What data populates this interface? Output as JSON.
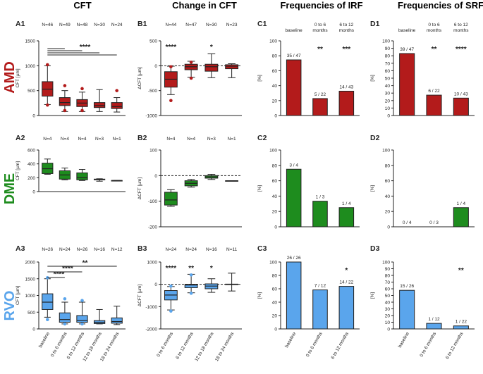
{
  "column_titles": [
    "CFT",
    "Change in CFT",
    "Frequencies of IRF",
    "Frequencies of SRF"
  ],
  "row_labels": [
    {
      "text": "AMD",
      "color": "#b31b1b"
    },
    {
      "text": "DME",
      "color": "#1e8c1e"
    },
    {
      "text": "RVO",
      "color": "#5aa5ec"
    }
  ],
  "colors": {
    "AMD": "#b31b1b",
    "DME": "#1e8c1e",
    "RVO": "#5aa5ec",
    "axis": "#222222"
  },
  "x_tick_labels": {
    "cft": [
      "baseline",
      "0 to 6 months",
      "6 to 12 months",
      "12 to 18 months",
      "18 to 24 months"
    ],
    "change": [
      "0 to 6 months",
      "6 to 12 months",
      "12 to 18 months",
      "18 to 24 months"
    ],
    "freq": [
      "baseline",
      "0 to 6 months",
      "6 to 12 months"
    ]
  },
  "chart_data": [
    {
      "id": "A1",
      "type": "box",
      "title": "A1",
      "ylabel": "CFT [µm]",
      "ylim": [
        0,
        1500
      ],
      "yticks": [
        0,
        500,
        1000,
        1500
      ],
      "color": "#b31b1b",
      "categories": [
        "baseline",
        "0 to 6 months",
        "6 to 12 months",
        "12 to 18 months",
        "18 to 24 months"
      ],
      "n_labels": [
        "N=46",
        "N=49",
        "N=48",
        "N=30",
        "N=24"
      ],
      "boxes": [
        {
          "min": 220,
          "q1": 390,
          "median": 530,
          "q3": 680,
          "max": 1000,
          "outliers": [
            1020,
            210
          ]
        },
        {
          "min": 80,
          "q1": 200,
          "median": 260,
          "q3": 360,
          "max": 500,
          "outliers": [
            600,
            100
          ]
        },
        {
          "min": 80,
          "q1": 180,
          "median": 250,
          "q3": 320,
          "max": 470,
          "outliers": [
            540,
            100
          ]
        },
        {
          "min": 80,
          "q1": 160,
          "median": 200,
          "q3": 260,
          "max": 520,
          "outliers": []
        },
        {
          "min": 70,
          "q1": 140,
          "median": 180,
          "q3": 260,
          "max": 360,
          "outliers": [
            500
          ]
        }
      ],
      "significance": {
        "text": "****",
        "comparisons": [
          [
            0,
            1
          ],
          [
            0,
            2
          ],
          [
            0,
            3
          ],
          [
            0,
            4
          ]
        ]
      }
    },
    {
      "id": "B1",
      "type": "box",
      "title": "B1",
      "ylabel": "ΔCFT [µm]",
      "ylim": [
        -1000,
        500
      ],
      "yticks": [
        -1000,
        -500,
        0,
        500
      ],
      "dashed_zero": true,
      "color": "#b31b1b",
      "categories": [
        "0 to 6 months",
        "6 to 12 months",
        "12 to 18 months",
        "18 to 24 months"
      ],
      "n_labels": [
        "N=44",
        "N=47",
        "N=30",
        "N=23"
      ],
      "boxes": [
        {
          "min": -580,
          "q1": -430,
          "median": -270,
          "q3": -120,
          "max": -10,
          "outliers": [
            -700,
            -20
          ]
        },
        {
          "min": -230,
          "q1": -80,
          "median": -20,
          "q3": 30,
          "max": 90,
          "outliers": [
            -250,
            70
          ]
        },
        {
          "min": -240,
          "q1": -110,
          "median": -20,
          "q3": 30,
          "max": 240,
          "outliers": []
        },
        {
          "min": -240,
          "q1": -60,
          "median": -10,
          "q3": 20,
          "max": 40,
          "outliers": []
        }
      ],
      "stars": [
        {
          "index": 0,
          "text": "****"
        },
        {
          "index": 2,
          "text": "*"
        }
      ]
    },
    {
      "id": "C1",
      "type": "bar",
      "title": "C1",
      "ylabel": "[%]",
      "ylim": [
        0,
        100
      ],
      "yticks": [
        0,
        20,
        40,
        60,
        80,
        100
      ],
      "color": "#b31b1b",
      "categories": [
        "baseline",
        "0 to 6 months",
        "6 to 12 months"
      ],
      "values": [
        74.5,
        22.7,
        32.6
      ],
      "labels": [
        "35 / 47",
        "5 / 22",
        "14 / 43"
      ],
      "stars": [
        {
          "index": 1,
          "text": "**"
        },
        {
          "index": 2,
          "text": "***"
        }
      ]
    },
    {
      "id": "D1",
      "type": "bar",
      "title": "D1",
      "ylabel": "[%]",
      "ylim": [
        0,
        100
      ],
      "yticks": [
        0,
        10,
        20,
        30,
        40,
        50,
        60,
        70,
        80,
        90,
        100
      ],
      "color": "#b31b1b",
      "categories": [
        "baseline",
        "0 to 6 months",
        "6 to 12 months"
      ],
      "values": [
        83.0,
        27.3,
        23.3
      ],
      "labels": [
        "39 / 47",
        "6 / 22",
        "10 / 43"
      ],
      "stars": [
        {
          "index": 1,
          "text": "**"
        },
        {
          "index": 2,
          "text": "****"
        }
      ]
    },
    {
      "id": "A2",
      "type": "box",
      "title": "A2",
      "ylabel": "CFT [µm]",
      "ylim": [
        0,
        600
      ],
      "yticks": [
        0,
        200,
        400,
        600
      ],
      "color": "#1e8c1e",
      "categories": [
        "baseline",
        "0 to 6 months",
        "6 to 12 months",
        "12 to 18 months",
        "18 to 24 months"
      ],
      "n_labels": [
        "N=4",
        "N=4",
        "N=4",
        "N=3",
        "N=1"
      ],
      "boxes": [
        {
          "min": 250,
          "q1": 260,
          "median": 330,
          "q3": 410,
          "max": 470,
          "outliers": []
        },
        {
          "min": 170,
          "q1": 180,
          "median": 240,
          "q3": 300,
          "max": 340,
          "outliers": []
        },
        {
          "min": 160,
          "q1": 170,
          "median": 200,
          "q3": 270,
          "max": 320,
          "outliers": []
        },
        {
          "min": 150,
          "q1": 170,
          "median": 175,
          "q3": 180,
          "max": 185,
          "outliers": []
        },
        {
          "min": 160,
          "q1": 160,
          "median": 160,
          "q3": 160,
          "max": 160,
          "outliers": []
        }
      ]
    },
    {
      "id": "B2",
      "type": "box",
      "title": "B2",
      "ylabel": "ΔCFT [µm]",
      "ylim": [
        -200,
        100
      ],
      "yticks": [
        -200,
        -100,
        0,
        100
      ],
      "dashed_zero": true,
      "color": "#1e8c1e",
      "categories": [
        "0 to 6 months",
        "6 to 12 months",
        "12 to 18 months",
        "18 to 24 months"
      ],
      "n_labels": [
        "N=4",
        "N=4",
        "N=3",
        "N=1"
      ],
      "boxes": [
        {
          "min": -120,
          "q1": -115,
          "median": -95,
          "q3": -65,
          "max": -55,
          "outliers": []
        },
        {
          "min": -45,
          "q1": -40,
          "median": -30,
          "q3": -20,
          "max": -15,
          "outliers": []
        },
        {
          "min": -15,
          "q1": -10,
          "median": -5,
          "q3": 0,
          "max": 5,
          "outliers": []
        },
        {
          "min": -20,
          "q1": -20,
          "median": -20,
          "q3": -20,
          "max": -20,
          "outliers": []
        }
      ]
    },
    {
      "id": "C2",
      "type": "bar",
      "title": "C2",
      "ylabel": "[%]",
      "ylim": [
        0,
        100
      ],
      "yticks": [
        0,
        20,
        40,
        60,
        80,
        100
      ],
      "color": "#1e8c1e",
      "categories": [
        "baseline",
        "0 to 6 months",
        "6 to 12 months"
      ],
      "values": [
        75,
        33.3,
        25
      ],
      "labels": [
        "3 / 4",
        "1 / 3",
        "1 / 4"
      ]
    },
    {
      "id": "D2",
      "type": "bar",
      "title": "D2",
      "ylabel": "[%]",
      "ylim": [
        0,
        100
      ],
      "yticks": [
        0,
        20,
        40,
        60,
        80,
        100
      ],
      "color": "#1e8c1e",
      "categories": [
        "baseline",
        "0 to 6 months",
        "6 to 12 months"
      ],
      "values": [
        0,
        0,
        25
      ],
      "labels": [
        "0 / 4",
        "0 / 3",
        "1 / 4"
      ]
    },
    {
      "id": "A3",
      "type": "box",
      "title": "A3",
      "ylabel": "CFT [µm]",
      "ylim": [
        0,
        2000
      ],
      "yticks": [
        0,
        500,
        1000,
        1500,
        2000
      ],
      "color": "#5aa5ec",
      "categories": [
        "baseline",
        "0 to 6 months",
        "6 to 12 months",
        "12 to 18 months",
        "18 to 24 months"
      ],
      "n_labels": [
        "N=26",
        "N=24",
        "N=26",
        "N=16",
        "N=12"
      ],
      "boxes": [
        {
          "min": 350,
          "q1": 580,
          "median": 800,
          "q3": 1050,
          "max": 1500,
          "outliers": [
            1530,
            280
          ]
        },
        {
          "min": 150,
          "q1": 200,
          "median": 280,
          "q3": 480,
          "max": 800,
          "outliers": [
            900,
            150
          ]
        },
        {
          "min": 150,
          "q1": 200,
          "median": 250,
          "q3": 400,
          "max": 800,
          "outliers": [
            850,
            150
          ]
        },
        {
          "min": 150,
          "q1": 160,
          "median": 200,
          "q3": 250,
          "max": 580,
          "outliers": []
        },
        {
          "min": 130,
          "q1": 170,
          "median": 220,
          "q3": 330,
          "max": 680,
          "outliers": []
        }
      ],
      "significance_lines": [
        {
          "from": 0,
          "to": 1,
          "text": "****"
        },
        {
          "from": 0,
          "to": 2,
          "text": "****"
        },
        {
          "from": 0,
          "to": 4,
          "text": "**"
        }
      ]
    },
    {
      "id": "B3",
      "type": "box",
      "title": "B3",
      "ylabel": "ΔCFT [µm]",
      "ylim": [
        -2000,
        1000
      ],
      "yticks": [
        -2000,
        -1000,
        0,
        1000
      ],
      "dashed_zero": true,
      "color": "#5aa5ec",
      "categories": [
        "0 to 6 months",
        "6 to 12 months",
        "12 to 18 months",
        "18 to 24 months"
      ],
      "n_labels": [
        "N=24",
        "N=24",
        "N=16",
        "N=11"
      ],
      "boxes": [
        {
          "min": -1150,
          "q1": -700,
          "median": -480,
          "q3": -280,
          "max": -100,
          "outliers": [
            -1200,
            -80
          ]
        },
        {
          "min": -380,
          "q1": -150,
          "median": -30,
          "q3": 0,
          "max": 450,
          "outliers": [
            -400,
            420
          ]
        },
        {
          "min": -360,
          "q1": -200,
          "median": -80,
          "q3": 20,
          "max": 250,
          "outliers": []
        },
        {
          "min": -300,
          "q1": -10,
          "median": 0,
          "q3": 10,
          "max": 500,
          "outliers": []
        }
      ],
      "stars": [
        {
          "index": 0,
          "text": "****"
        },
        {
          "index": 1,
          "text": "**"
        },
        {
          "index": 2,
          "text": "*"
        }
      ]
    },
    {
      "id": "C3",
      "type": "bar",
      "title": "C3",
      "ylabel": "[%]",
      "ylim": [
        0,
        100
      ],
      "yticks": [
        0,
        20,
        40,
        60,
        80,
        100
      ],
      "color": "#5aa5ec",
      "categories": [
        "baseline",
        "0 to 6 months",
        "6 to 12 months"
      ],
      "values": [
        100,
        58.3,
        63.6
      ],
      "labels": [
        "26 / 26",
        "7 / 12",
        "14 / 22"
      ],
      "stars": [
        {
          "index": 2,
          "text": "*"
        }
      ]
    },
    {
      "id": "D3",
      "type": "bar",
      "title": "D3",
      "ylabel": "[%]",
      "ylim": [
        0,
        100
      ],
      "yticks": [
        0,
        10,
        20,
        30,
        40,
        50,
        60,
        70,
        80,
        90,
        100
      ],
      "color": "#5aa5ec",
      "categories": [
        "baseline",
        "0 to 6 months",
        "6 to 12 months"
      ],
      "values": [
        57.7,
        8.3,
        4.5
      ],
      "labels": [
        "15 / 26",
        "1 / 12",
        "1 / 22"
      ],
      "stars": [
        {
          "index": 2,
          "text": "**"
        }
      ]
    }
  ]
}
